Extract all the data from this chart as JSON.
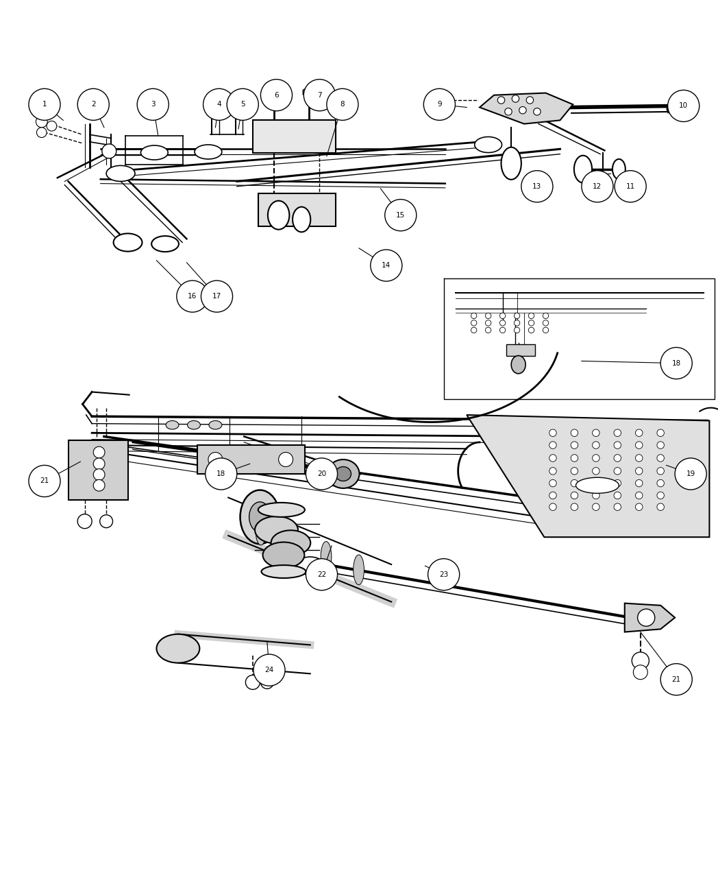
{
  "fig_width": 10.48,
  "fig_height": 12.73,
  "dpi": 100,
  "bg": "#ffffff",
  "lc": "#000000",
  "top_callouts": [
    [
      1,
      0.062,
      0.962,
      0.088,
      0.94
    ],
    [
      2,
      0.13,
      0.962,
      0.145,
      0.93
    ],
    [
      3,
      0.213,
      0.962,
      0.22,
      0.92
    ],
    [
      4,
      0.305,
      0.962,
      0.3,
      0.93
    ],
    [
      5,
      0.338,
      0.962,
      0.332,
      0.928
    ],
    [
      6,
      0.385,
      0.975,
      0.382,
      0.96
    ],
    [
      7,
      0.445,
      0.975,
      0.435,
      0.958
    ],
    [
      8,
      0.477,
      0.962,
      0.455,
      0.89
    ],
    [
      9,
      0.612,
      0.962,
      0.65,
      0.958
    ],
    [
      10,
      0.952,
      0.96,
      0.93,
      0.95
    ],
    [
      11,
      0.878,
      0.848,
      0.862,
      0.855
    ],
    [
      12,
      0.832,
      0.848,
      0.82,
      0.853
    ],
    [
      13,
      0.748,
      0.848,
      0.74,
      0.855
    ],
    [
      14,
      0.538,
      0.738,
      0.5,
      0.762
    ],
    [
      15,
      0.558,
      0.808,
      0.53,
      0.845
    ],
    [
      16,
      0.268,
      0.695,
      0.218,
      0.745
    ],
    [
      17,
      0.302,
      0.695,
      0.26,
      0.742
    ],
    [
      18,
      0.942,
      0.602,
      0.81,
      0.605
    ]
  ],
  "bot_callouts": [
    [
      21,
      0.062,
      0.438,
      0.112,
      0.465
    ],
    [
      18,
      0.308,
      0.448,
      0.348,
      0.462
    ],
    [
      20,
      0.448,
      0.448,
      0.428,
      0.458
    ],
    [
      19,
      0.962,
      0.448,
      0.928,
      0.46
    ],
    [
      22,
      0.448,
      0.308,
      0.462,
      0.348
    ],
    [
      23,
      0.618,
      0.308,
      0.592,
      0.32
    ],
    [
      24,
      0.375,
      0.175,
      0.372,
      0.215
    ],
    [
      21,
      0.942,
      0.162,
      0.892,
      0.228
    ]
  ]
}
